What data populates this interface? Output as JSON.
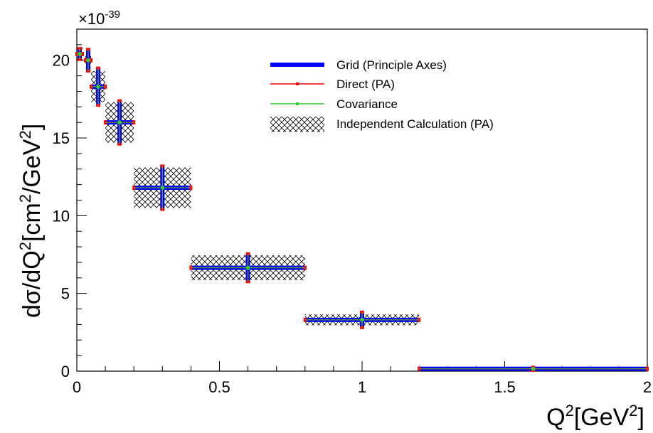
{
  "chart_data": {
    "type": "scatter",
    "xlabel": {
      "base": "Q",
      "sup1": "2",
      "mid": "[GeV",
      "sup2": "2",
      "end": "]"
    },
    "ylabel": {
      "a": "dσ/dQ",
      "sup1": "2",
      "b": "[cm",
      "sup2": "2",
      "c": "/GeV",
      "sup3": "2",
      "d": "]"
    },
    "y_multiplier": {
      "base": "×10",
      "exp": "-39"
    },
    "xlim": [
      0,
      2
    ],
    "ylim": [
      0,
      22
    ],
    "x_ticks": [
      0,
      0.5,
      1,
      1.5,
      2
    ],
    "x_tick_labels": [
      "0",
      "0.5",
      "1",
      "1.5",
      "2"
    ],
    "y_ticks": [
      0,
      5,
      10,
      15,
      20
    ],
    "y_tick_labels": [
      "0",
      "5",
      "10",
      "15",
      "20"
    ],
    "legend_position": "top-right",
    "legend": [
      {
        "label": "Grid (Principle Axes)",
        "style": "thick-line",
        "color": "#0000ff"
      },
      {
        "label": "Direct (PA)",
        "style": "line-marker",
        "color": "#ff0000"
      },
      {
        "label": "Covariance",
        "style": "line-marker",
        "color": "#33cc33"
      },
      {
        "label": "Independent Calculation (PA)",
        "style": "hatched-box",
        "color": "#000000"
      }
    ],
    "series": [
      {
        "name": "Grid (Principle Axes)",
        "points": [
          {
            "x": 0.01,
            "xerr": 0.01,
            "y": 20.4,
            "yerr": 0.35
          },
          {
            "x": 0.04,
            "xerr": 0.01,
            "y": 20.0,
            "yerr": 0.7
          },
          {
            "x": 0.075,
            "xerr": 0.025,
            "y": 18.3,
            "yerr": 1.2
          },
          {
            "x": 0.15,
            "xerr": 0.05,
            "y": 16.0,
            "yerr": 1.4
          },
          {
            "x": 0.3,
            "xerr": 0.1,
            "y": 11.8,
            "yerr": 1.4
          },
          {
            "x": 0.6,
            "xerr": 0.2,
            "y": 6.65,
            "yerr": 0.9
          },
          {
            "x": 1.0,
            "xerr": 0.2,
            "y": 3.3,
            "yerr": 0.5
          },
          {
            "x": 1.6,
            "xerr": 0.4,
            "y": 0.15,
            "yerr": 0.1
          }
        ]
      },
      {
        "name": "Direct (PA)",
        "points": [
          {
            "x": 0.01,
            "xerr": 0.01,
            "y": 20.4,
            "yerr": 0.35
          },
          {
            "x": 0.04,
            "xerr": 0.01,
            "y": 20.0,
            "yerr": 0.7
          },
          {
            "x": 0.075,
            "xerr": 0.025,
            "y": 18.3,
            "yerr": 1.2
          },
          {
            "x": 0.15,
            "xerr": 0.05,
            "y": 16.0,
            "yerr": 1.4
          },
          {
            "x": 0.3,
            "xerr": 0.1,
            "y": 11.8,
            "yerr": 1.4
          },
          {
            "x": 0.6,
            "xerr": 0.2,
            "y": 6.65,
            "yerr": 0.9
          },
          {
            "x": 1.0,
            "xerr": 0.2,
            "y": 3.3,
            "yerr": 0.5
          },
          {
            "x": 1.6,
            "xerr": 0.4,
            "y": 0.15,
            "yerr": 0.1
          }
        ]
      },
      {
        "name": "Covariance",
        "points": [
          {
            "x": 0.01,
            "xerr": 0.01,
            "y": 20.4,
            "yerr": 0.35
          },
          {
            "x": 0.04,
            "xerr": 0.01,
            "y": 20.0,
            "yerr": 0.7
          },
          {
            "x": 0.075,
            "xerr": 0.025,
            "y": 18.3,
            "yerr": 1.2
          },
          {
            "x": 0.15,
            "xerr": 0.05,
            "y": 16.0,
            "yerr": 1.4
          },
          {
            "x": 0.3,
            "xerr": 0.1,
            "y": 11.8,
            "yerr": 1.4
          },
          {
            "x": 0.6,
            "xerr": 0.2,
            "y": 6.65,
            "yerr": 0.9
          },
          {
            "x": 1.0,
            "xerr": 0.2,
            "y": 3.3,
            "yerr": 0.5
          },
          {
            "x": 1.6,
            "xerr": 0.4,
            "y": 0.15,
            "yerr": 0.1
          }
        ]
      },
      {
        "name": "Independent Calculation (PA)",
        "points": [
          {
            "x": 0.01,
            "xerr": 0.01,
            "y": 20.4,
            "yerr": 0.45
          },
          {
            "x": 0.04,
            "xerr": 0.01,
            "y": 20.0,
            "yerr": 0.5
          },
          {
            "x": 0.075,
            "xerr": 0.025,
            "y": 18.3,
            "yerr": 1.0
          },
          {
            "x": 0.15,
            "xerr": 0.05,
            "y": 16.0,
            "yerr": 1.3
          },
          {
            "x": 0.3,
            "xerr": 0.1,
            "y": 11.8,
            "yerr": 1.3
          },
          {
            "x": 0.6,
            "xerr": 0.2,
            "y": 6.65,
            "yerr": 0.8
          },
          {
            "x": 1.0,
            "xerr": 0.2,
            "y": 3.3,
            "yerr": 0.35
          },
          {
            "x": 1.6,
            "xerr": 0.4,
            "y": 0.15,
            "yerr": 0.0
          }
        ]
      }
    ]
  }
}
